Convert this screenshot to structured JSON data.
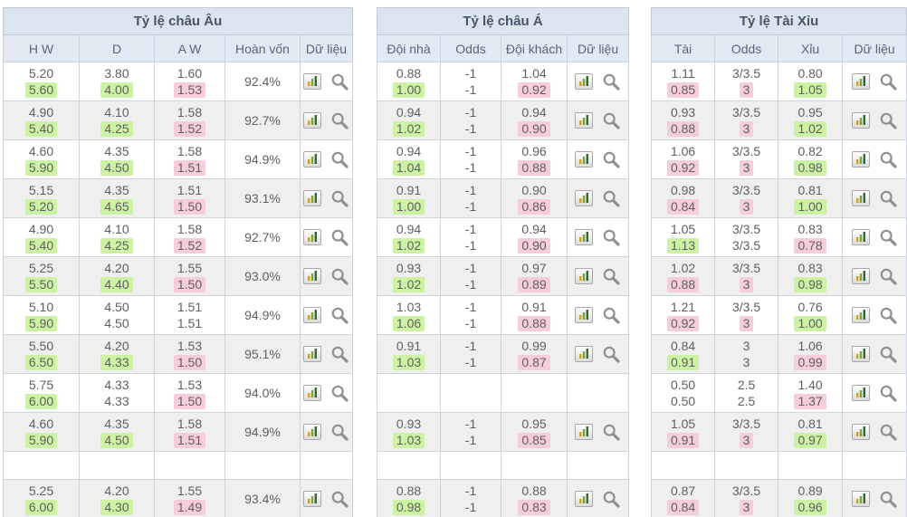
{
  "colors": {
    "highlight_green": "#cdf2a3",
    "highlight_pink": "#f7cddd",
    "header_bg": "#dce5ef",
    "column_header_bg": "#e2e9f2",
    "row_alt_bg": "#efefef",
    "header_text": "#47566a",
    "value_text": "#5f5f5f"
  },
  "icons": {
    "chart": "bar-chart-icon",
    "search": "magnifier-icon"
  },
  "tables": [
    {
      "title": "Tỷ lệ châu Âu",
      "columns": [
        "H W",
        "D",
        "A W",
        "Hoàn vốn",
        "Dữ liệu"
      ],
      "rows": [
        {
          "cells": [
            [
              "5.20",
              "5.60",
              "g"
            ],
            [
              "3.80",
              "4.00",
              "g"
            ],
            [
              "1.60",
              "1.53",
              "p"
            ]
          ],
          "payout": "92.4%"
        },
        {
          "cells": [
            [
              "4.90",
              "5.40",
              "g"
            ],
            [
              "4.10",
              "4.25",
              "g"
            ],
            [
              "1.58",
              "1.52",
              "p"
            ]
          ],
          "payout": "92.7%"
        },
        {
          "cells": [
            [
              "4.60",
              "5.90",
              "g"
            ],
            [
              "4.35",
              "4.50",
              "g"
            ],
            [
              "1.58",
              "1.51",
              "p"
            ]
          ],
          "payout": "94.9%"
        },
        {
          "cells": [
            [
              "5.15",
              "5.20",
              "g"
            ],
            [
              "4.35",
              "4.65",
              "g"
            ],
            [
              "1.51",
              "1.50",
              "p"
            ]
          ],
          "payout": "93.1%"
        },
        {
          "cells": [
            [
              "4.90",
              "5.40",
              "g"
            ],
            [
              "4.10",
              "4.25",
              "g"
            ],
            [
              "1.58",
              "1.52",
              "p"
            ]
          ],
          "payout": "92.7%"
        },
        {
          "cells": [
            [
              "5.25",
              "5.50",
              "g"
            ],
            [
              "4.20",
              "4.40",
              "g"
            ],
            [
              "1.55",
              "1.50",
              "p"
            ]
          ],
          "payout": "93.0%"
        },
        {
          "cells": [
            [
              "5.10",
              "5.90",
              "g"
            ],
            [
              "4.50",
              "4.50",
              ""
            ],
            [
              "1.51",
              "1.51",
              ""
            ]
          ],
          "payout": "94.9%"
        },
        {
          "cells": [
            [
              "5.50",
              "6.50",
              "g"
            ],
            [
              "4.20",
              "4.33",
              "g"
            ],
            [
              "1.53",
              "1.50",
              "p"
            ]
          ],
          "payout": "95.1%"
        },
        {
          "cells": [
            [
              "5.75",
              "6.00",
              "g"
            ],
            [
              "4.33",
              "4.33",
              ""
            ],
            [
              "1.53",
              "1.50",
              "p"
            ]
          ],
          "payout": "94.0%"
        },
        {
          "cells": [
            [
              "4.60",
              "5.90",
              "g"
            ],
            [
              "4.35",
              "4.50",
              "g"
            ],
            [
              "1.58",
              "1.51",
              "p"
            ]
          ],
          "payout": "94.9%"
        },
        {
          "type": "spacer"
        },
        {
          "cells": [
            [
              "5.25",
              "6.00",
              "g"
            ],
            [
              "4.20",
              "4.30",
              "g"
            ],
            [
              "1.55",
              "1.49",
              "p"
            ]
          ],
          "payout": "93.4%"
        }
      ]
    },
    {
      "title": "Tỷ lệ châu Á",
      "columns": [
        "Đội nhà",
        "Odds",
        "Đội khách",
        "Dữ liệu"
      ],
      "rows": [
        {
          "cells": [
            [
              "0.88",
              "1.00",
              "g"
            ],
            [
              "-1",
              "-1",
              ""
            ],
            [
              "1.04",
              "0.92",
              "p"
            ]
          ]
        },
        {
          "cells": [
            [
              "0.94",
              "1.02",
              "g"
            ],
            [
              "-1",
              "-1",
              ""
            ],
            [
              "0.94",
              "0.90",
              "p"
            ]
          ]
        },
        {
          "cells": [
            [
              "0.94",
              "1.04",
              "g"
            ],
            [
              "-1",
              "-1",
              ""
            ],
            [
              "0.96",
              "0.88",
              "p"
            ]
          ]
        },
        {
          "cells": [
            [
              "0.91",
              "1.00",
              "g"
            ],
            [
              "-1",
              "-1",
              ""
            ],
            [
              "0.90",
              "0.86",
              "p"
            ]
          ]
        },
        {
          "cells": [
            [
              "0.94",
              "1.02",
              "g"
            ],
            [
              "-1",
              "-1",
              ""
            ],
            [
              "0.94",
              "0.90",
              "p"
            ]
          ]
        },
        {
          "cells": [
            [
              "0.93",
              "1.02",
              "g"
            ],
            [
              "-1",
              "-1",
              ""
            ],
            [
              "0.97",
              "0.89",
              "p"
            ]
          ]
        },
        {
          "cells": [
            [
              "1.03",
              "1.06",
              "g"
            ],
            [
              "-1",
              "-1",
              ""
            ],
            [
              "0.91",
              "0.88",
              "p"
            ]
          ]
        },
        {
          "cells": [
            [
              "0.91",
              "1.03",
              "g"
            ],
            [
              "-1",
              "-1",
              ""
            ],
            [
              "0.99",
              "0.87",
              "p"
            ]
          ]
        },
        {
          "type": "empty"
        },
        {
          "cells": [
            [
              "0.93",
              "1.03",
              "g"
            ],
            [
              "-1",
              "-1",
              ""
            ],
            [
              "0.95",
              "0.85",
              "p"
            ]
          ]
        },
        {
          "type": "spacer"
        },
        {
          "cells": [
            [
              "0.88",
              "0.98",
              "g"
            ],
            [
              "-1",
              "-1",
              ""
            ],
            [
              "0.88",
              "0.83",
              "p"
            ]
          ]
        }
      ]
    },
    {
      "title": "Tỷ lệ Tài Xỉu",
      "columns": [
        "Tài",
        "Odds",
        "Xỉu",
        "Dữ liệu"
      ],
      "rows": [
        {
          "cells": [
            [
              "1.11",
              "0.85",
              "p"
            ],
            [
              "3/3.5",
              "3",
              "p"
            ],
            [
              "0.80",
              "1.05",
              "g"
            ]
          ]
        },
        {
          "cells": [
            [
              "0.93",
              "0.88",
              "p"
            ],
            [
              "3/3.5",
              "3",
              "p"
            ],
            [
              "0.95",
              "1.02",
              "g"
            ]
          ]
        },
        {
          "cells": [
            [
              "1.06",
              "0.92",
              "p"
            ],
            [
              "3/3.5",
              "3",
              "p"
            ],
            [
              "0.82",
              "0.98",
              "g"
            ]
          ]
        },
        {
          "cells": [
            [
              "0.98",
              "0.84",
              "p"
            ],
            [
              "3/3.5",
              "3",
              "p"
            ],
            [
              "0.81",
              "1.00",
              "g"
            ]
          ]
        },
        {
          "cells": [
            [
              "1.05",
              "1.13",
              "g"
            ],
            [
              "3/3.5",
              "3/3.5",
              ""
            ],
            [
              "0.83",
              "0.78",
              "p"
            ]
          ]
        },
        {
          "cells": [
            [
              "1.02",
              "0.88",
              "p"
            ],
            [
              "3/3.5",
              "3",
              "p"
            ],
            [
              "0.83",
              "0.98",
              "g"
            ]
          ]
        },
        {
          "cells": [
            [
              "1.21",
              "0.92",
              "p"
            ],
            [
              "3/3.5",
              "3",
              "p"
            ],
            [
              "0.76",
              "1.00",
              "g"
            ]
          ]
        },
        {
          "cells": [
            [
              "0.84",
              "0.91",
              "g"
            ],
            [
              "3",
              "3",
              ""
            ],
            [
              "1.06",
              "0.99",
              "p"
            ]
          ]
        },
        {
          "cells": [
            [
              "0.50",
              "0.50",
              ""
            ],
            [
              "2.5",
              "2.5",
              ""
            ],
            [
              "1.40",
              "1.37",
              "p"
            ]
          ]
        },
        {
          "cells": [
            [
              "1.05",
              "0.91",
              "p"
            ],
            [
              "3/3.5",
              "3",
              "p"
            ],
            [
              "0.81",
              "0.97",
              "g"
            ]
          ]
        },
        {
          "type": "spacer"
        },
        {
          "cells": [
            [
              "0.87",
              "0.84",
              "p"
            ],
            [
              "3/3.5",
              "3",
              "p"
            ],
            [
              "0.89",
              "0.96",
              "g"
            ]
          ]
        }
      ]
    }
  ]
}
